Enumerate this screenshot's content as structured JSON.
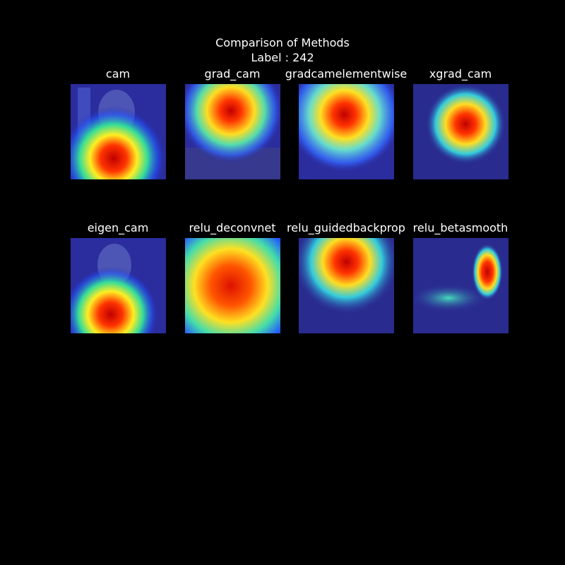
{
  "figure": {
    "title": "Comparison of Methods",
    "subtitle": "Label : 242",
    "background": "#000000"
  },
  "panels": [
    {
      "title": "cam"
    },
    {
      "title": "grad_cam"
    },
    {
      "title": "gradcamelementwise"
    },
    {
      "title": "xgrad_cam"
    },
    {
      "title": "eigen_cam"
    },
    {
      "title": "relu_deconvnet"
    },
    {
      "title": "relu_guidedbackprop"
    },
    {
      "title": "relu_betasmooth"
    }
  ]
}
